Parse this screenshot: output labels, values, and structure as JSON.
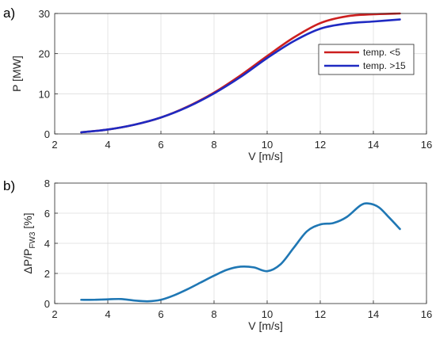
{
  "chart_data": [
    {
      "type": "line",
      "panel_label": "a)",
      "xlabel": "V [m/s]",
      "ylabel": "P [MW]",
      "xlim": [
        2,
        16
      ],
      "ylim": [
        0,
        30
      ],
      "xticks": [
        2,
        4,
        6,
        8,
        10,
        12,
        14,
        16
      ],
      "yticks": [
        0,
        10,
        20,
        30
      ],
      "grid": true,
      "legend_position": "right",
      "series": [
        {
          "name": "temp. <5",
          "color": "#cc1f1f",
          "x": [
            3,
            4,
            5,
            6,
            7,
            8,
            9,
            10,
            11,
            12,
            13,
            14,
            15
          ],
          "y": [
            0.4,
            1.1,
            2.3,
            4.1,
            6.8,
            10.3,
            14.6,
            19.4,
            24.0,
            27.6,
            29.3,
            29.8,
            30.0
          ]
        },
        {
          "name": "temp. >15",
          "color": "#1f2ac2",
          "x": [
            3,
            4,
            5,
            6,
            7,
            8,
            9,
            10,
            11,
            12,
            13,
            14,
            15
          ],
          "y": [
            0.4,
            1.1,
            2.3,
            4.1,
            6.7,
            10.1,
            14.2,
            18.9,
            23.1,
            26.2,
            27.5,
            28.0,
            28.5
          ]
        }
      ]
    },
    {
      "type": "line",
      "panel_label": "b)",
      "xlabel": "V [m/s]",
      "ylabel_main": "ΔP/P",
      "ylabel_sub": "FW3",
      "ylabel_unit": " [%]",
      "xlim": [
        2,
        16
      ],
      "ylim": [
        0,
        8
      ],
      "xticks": [
        2,
        4,
        6,
        8,
        10,
        12,
        14,
        16
      ],
      "yticks": [
        0,
        2,
        4,
        6,
        8
      ],
      "grid": true,
      "series": [
        {
          "color": "#1f77b4",
          "x": [
            3,
            3.5,
            4,
            4.5,
            5,
            5.5,
            6,
            6.5,
            7,
            7.5,
            8,
            8.5,
            9,
            9.5,
            10,
            10.5,
            11,
            11.5,
            12,
            12.5,
            13,
            13.5,
            13.8,
            14.2,
            14.6,
            15
          ],
          "y": [
            0.25,
            0.25,
            0.28,
            0.3,
            0.2,
            0.15,
            0.25,
            0.55,
            0.95,
            1.4,
            1.85,
            2.25,
            2.45,
            2.4,
            2.15,
            2.6,
            3.7,
            4.8,
            5.25,
            5.35,
            5.75,
            6.5,
            6.65,
            6.4,
            5.7,
            4.95
          ]
        }
      ]
    }
  ]
}
